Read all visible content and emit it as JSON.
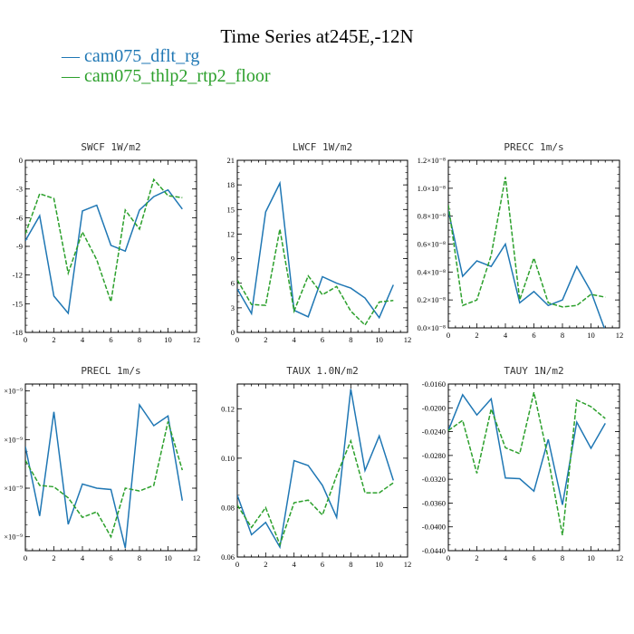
{
  "figure": {
    "title": "Time Series at245E,-12N",
    "legend": [
      {
        "label": "— cam075_dflt_rg",
        "color": "#1f77b4"
      },
      {
        "label": "— cam075_thlp2_rtp2_floor",
        "color": "#2ca02c"
      }
    ]
  },
  "chart_data": [
    {
      "type": "line",
      "title": "SWCF   1W/m2",
      "xlim": [
        0,
        12
      ],
      "ylim": [
        -18,
        0
      ],
      "xticks": [
        0,
        2,
        4,
        6,
        8,
        10,
        12
      ],
      "xtick_labels": [
        "0",
        "2",
        "4",
        "6",
        "8",
        "10",
        "12"
      ],
      "yticks": [
        -18,
        -15,
        -12,
        -9,
        -6,
        -3,
        0
      ],
      "ytick_labels": [
        "-18",
        "-15",
        "-12",
        "-9",
        "-6",
        "-3",
        "0"
      ],
      "x": [
        0,
        1,
        2,
        3,
        4,
        5,
        6,
        7,
        8,
        9,
        10,
        11
      ],
      "series": [
        {
          "name": "cam075_dflt_rg",
          "color": "#1f77b4",
          "dash": "",
          "values": [
            -8.4,
            -5.8,
            -14.2,
            -16.0,
            -5.3,
            -4.7,
            -8.9,
            -9.5,
            -5.2,
            -3.8,
            -3.1,
            -5.1
          ]
        },
        {
          "name": "cam075_thlp2_rtp2_floor",
          "color": "#2ca02c",
          "dash": "5,2",
          "values": [
            -7.7,
            -3.5,
            -4.0,
            -11.8,
            -7.5,
            -10.4,
            -14.8,
            -5.2,
            -7.2,
            -2.0,
            -3.7,
            -3.9
          ]
        }
      ]
    },
    {
      "type": "line",
      "title": "LWCF   1W/m2",
      "xlim": [
        0,
        12
      ],
      "ylim": [
        0,
        21
      ],
      "xticks": [
        0,
        2,
        4,
        6,
        8,
        10,
        12
      ],
      "xtick_labels": [
        "0",
        "2",
        "4",
        "6",
        "8",
        "10",
        "12"
      ],
      "yticks": [
        0,
        3,
        6,
        9,
        12,
        15,
        18,
        21
      ],
      "ytick_labels": [
        "0",
        "3",
        "6",
        "9",
        "12",
        "15",
        "18",
        "21"
      ],
      "x": [
        0,
        1,
        2,
        3,
        4,
        5,
        6,
        7,
        8,
        9,
        10,
        11
      ],
      "series": [
        {
          "name": "cam075_dflt_rg",
          "color": "#1f77b4",
          "dash": "",
          "values": [
            5.3,
            2.3,
            14.7,
            18.2,
            2.7,
            1.9,
            6.8,
            6.0,
            5.4,
            4.2,
            1.8,
            5.8
          ]
        },
        {
          "name": "cam075_thlp2_rtp2_floor",
          "color": "#2ca02c",
          "dash": "5,2",
          "values": [
            6.4,
            3.4,
            3.3,
            12.6,
            2.6,
            6.9,
            4.6,
            5.6,
            2.6,
            0.9,
            3.7,
            3.9
          ]
        }
      ]
    },
    {
      "type": "line",
      "title": "PRECC   1m/s",
      "xlim": [
        0,
        12
      ],
      "ylim": [
        0,
        1.2
      ],
      "xticks": [
        0,
        2,
        4,
        6,
        8,
        10,
        12
      ],
      "xtick_labels": [
        "0",
        "2",
        "4",
        "6",
        "8",
        "10",
        "12"
      ],
      "yticks": [
        0,
        0.2,
        0.4,
        0.6,
        0.8,
        1.0,
        1.2
      ],
      "ytick_labels": [
        "0.0×10⁻⁸",
        "0.2×10⁻⁸",
        "0.4×10⁻⁸",
        "0.6×10⁻⁸",
        "0.8×10⁻⁸",
        "1.0×10⁻⁸",
        "1.2×10⁻⁸"
      ],
      "x": [
        0,
        1,
        2,
        3,
        4,
        5,
        6,
        7,
        8,
        9,
        10,
        11
      ],
      "series": [
        {
          "name": "cam075_dflt_rg",
          "color": "#1f77b4",
          "dash": "",
          "values": [
            0.84,
            0.37,
            0.48,
            0.44,
            0.6,
            0.18,
            0.26,
            0.16,
            0.2,
            0.44,
            0.26,
            -0.02
          ]
        },
        {
          "name": "cam075_thlp2_rtp2_floor",
          "color": "#2ca02c",
          "dash": "5,2",
          "values": [
            0.88,
            0.16,
            0.2,
            0.52,
            1.08,
            0.2,
            0.5,
            0.18,
            0.15,
            0.16,
            0.24,
            0.22
          ]
        }
      ]
    },
    {
      "type": "line",
      "title": "PRECL   1m/s",
      "xlim": [
        0,
        12
      ],
      "ylim": [
        0.2,
        1.4
      ],
      "xticks": [
        0,
        2,
        4,
        6,
        8,
        10,
        12
      ],
      "xtick_labels": [
        "0",
        "2",
        "4",
        "6",
        "8",
        "10",
        "12"
      ],
      "yticks": [
        0.3,
        0.65,
        1.0,
        1.35
      ],
      "ytick_labels": [
        "×10⁻⁹",
        "×10⁻⁹",
        "×10⁻⁹",
        "×10⁻⁹"
      ],
      "x": [
        0,
        1,
        2,
        3,
        4,
        5,
        6,
        7,
        8,
        9,
        10,
        11
      ],
      "series": [
        {
          "name": "cam075_dflt_rg",
          "color": "#1f77b4",
          "dash": "",
          "values": [
            0.95,
            0.45,
            1.2,
            0.39,
            0.68,
            0.65,
            0.64,
            0.22,
            1.25,
            1.1,
            1.17,
            0.56
          ]
        },
        {
          "name": "cam075_thlp2_rtp2_floor",
          "color": "#2ca02c",
          "dash": "5,2",
          "values": [
            0.85,
            0.67,
            0.66,
            0.58,
            0.44,
            0.48,
            0.3,
            0.65,
            0.63,
            0.67,
            1.13,
            0.78
          ]
        }
      ]
    },
    {
      "type": "line",
      "title": "TAUX   1.0N/m2",
      "xlim": [
        0,
        12
      ],
      "ylim": [
        0.06,
        0.13
      ],
      "xticks": [
        0,
        2,
        4,
        6,
        8,
        10,
        12
      ],
      "xtick_labels": [
        "0",
        "2",
        "4",
        "6",
        "8",
        "10",
        "12"
      ],
      "yticks": [
        0.06,
        0.08,
        0.1,
        0.12
      ],
      "ytick_labels": [
        "0.06",
        "0.08",
        "0.10",
        "0.12"
      ],
      "x": [
        0,
        1,
        2,
        3,
        4,
        5,
        6,
        7,
        8,
        9,
        10,
        11
      ],
      "series": [
        {
          "name": "cam075_dflt_rg",
          "color": "#1f77b4",
          "dash": "",
          "values": [
            0.085,
            0.069,
            0.074,
            0.064,
            0.099,
            0.097,
            0.089,
            0.076,
            0.128,
            0.095,
            0.109,
            0.091
          ]
        },
        {
          "name": "cam075_thlp2_rtp2_floor",
          "color": "#2ca02c",
          "dash": "5,2",
          "values": [
            0.081,
            0.072,
            0.08,
            0.065,
            0.082,
            0.083,
            0.077,
            0.093,
            0.107,
            0.086,
            0.086,
            0.09
          ]
        }
      ]
    },
    {
      "type": "line",
      "title": "TAUY   1N/m2",
      "xlim": [
        0,
        12
      ],
      "ylim": [
        -0.044,
        -0.016
      ],
      "xticks": [
        0,
        2,
        4,
        6,
        8,
        10,
        12
      ],
      "xtick_labels": [
        "0",
        "2",
        "4",
        "6",
        "8",
        "10",
        "12"
      ],
      "yticks": [
        -0.044,
        -0.04,
        -0.036,
        -0.032,
        -0.028,
        -0.024,
        -0.02,
        -0.016
      ],
      "ytick_labels": [
        "-0.0440",
        "-0.0400",
        "-0.0360",
        "-0.0320",
        "-0.0280",
        "-0.0240",
        "-0.0200",
        "-0.0160"
      ],
      "x": [
        0,
        1,
        2,
        3,
        4,
        5,
        6,
        7,
        8,
        9,
        10,
        11
      ],
      "series": [
        {
          "name": "cam075_dflt_rg",
          "color": "#1f77b4",
          "dash": "",
          "values": [
            -0.0238,
            -0.0178,
            -0.0212,
            -0.0185,
            -0.0318,
            -0.0319,
            -0.034,
            -0.0253,
            -0.0363,
            -0.0224,
            -0.0268,
            -0.0226
          ]
        },
        {
          "name": "cam075_thlp2_rtp2_floor",
          "color": "#2ca02c",
          "dash": "5,2",
          "values": [
            -0.0238,
            -0.0221,
            -0.031,
            -0.0202,
            -0.0267,
            -0.0277,
            -0.0174,
            -0.0285,
            -0.0414,
            -0.0187,
            -0.0198,
            -0.0218
          ]
        }
      ]
    }
  ]
}
